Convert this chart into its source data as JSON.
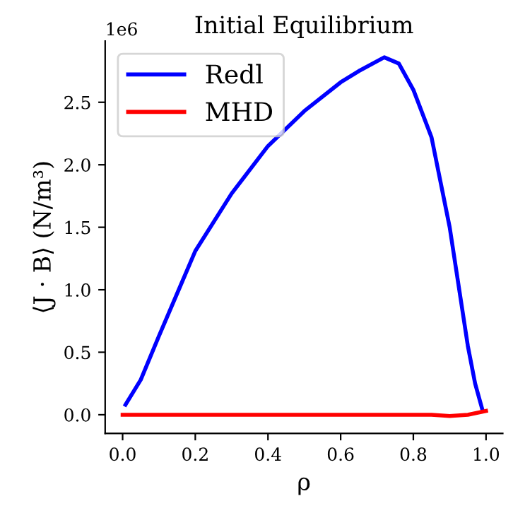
{
  "chart_data": {
    "type": "line",
    "title": "Initial Equilibrium",
    "xlabel": "ρ",
    "ylabel": "⟨J · B⟩ (N/m³)",
    "annotations": [
      "1e6"
    ],
    "series": [
      {
        "name": "Redl",
        "color": "#0000ff",
        "x": [
          0.008,
          0.05,
          0.1,
          0.2,
          0.3,
          0.4,
          0.5,
          0.6,
          0.65,
          0.72,
          0.76,
          0.8,
          0.85,
          0.9,
          0.93,
          0.95,
          0.97,
          0.99
        ],
        "values": [
          0.08,
          0.28,
          0.63,
          1.31,
          1.77,
          2.15,
          2.43,
          2.66,
          2.75,
          2.86,
          2.81,
          2.6,
          2.22,
          1.5,
          0.93,
          0.55,
          0.25,
          0.04
        ]
      },
      {
        "name": "MHD",
        "color": "#ff0000",
        "x": [
          0.0,
          0.2,
          0.4,
          0.6,
          0.8,
          0.85,
          0.9,
          0.95,
          1.0
        ],
        "values": [
          0,
          0,
          0,
          0,
          0,
          0,
          -0.01,
          0,
          0.03
        ]
      }
    ],
    "xlim": [
      -0.048,
      1.046
    ],
    "ylim": [
      -0.15,
      2.99
    ],
    "xticks": [
      {
        "value": 0,
        "label": "0.0"
      },
      0.2,
      0.4,
      0.6,
      0.8,
      {
        "value": 1,
        "label": "1.0"
      }
    ],
    "yticks": [
      {
        "value": 0,
        "label": "0.0"
      },
      0.5,
      {
        "value": 1,
        "label": "1.0"
      },
      1.5,
      {
        "value": 2,
        "label": "2.0"
      },
      2.5
    ],
    "legend": "top left",
    "grid": false,
    "line_style": "solid",
    "marker": "none"
  }
}
